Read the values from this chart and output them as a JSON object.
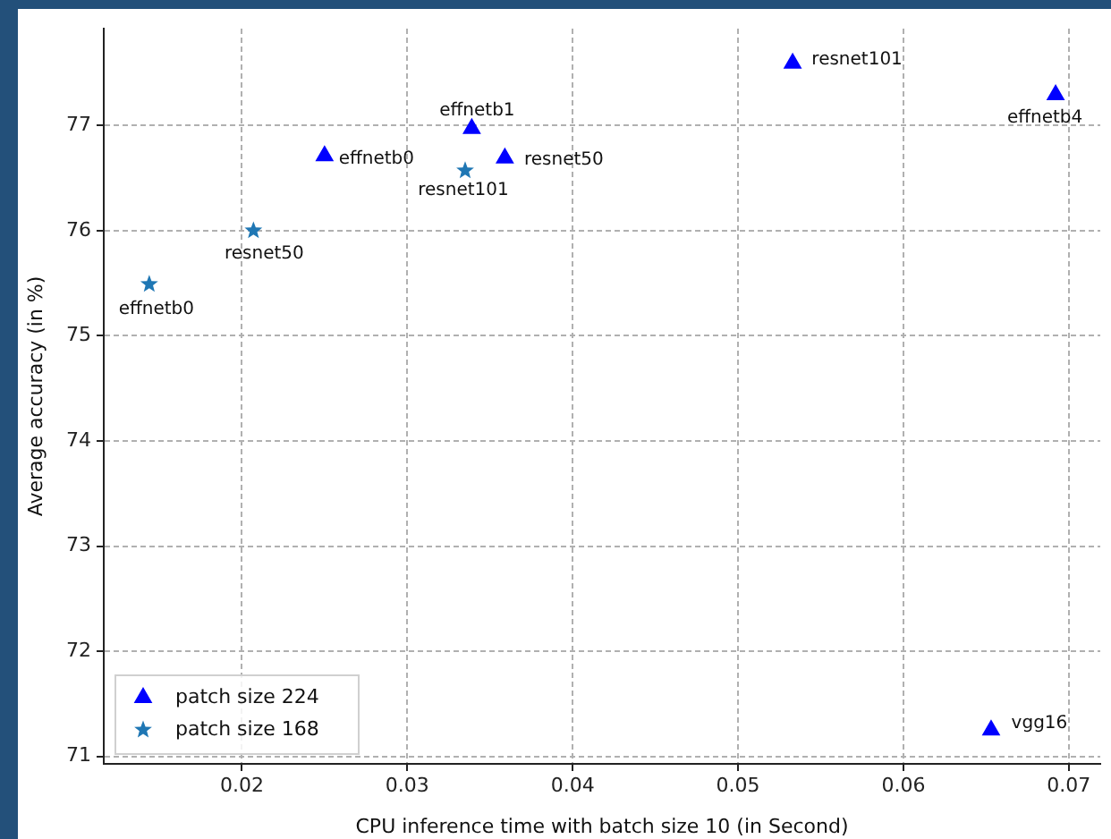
{
  "chart_data": {
    "type": "scatter",
    "xlabel": "CPU inference time with batch size 10 (in Second)",
    "ylabel": "Average accuracy (in %)",
    "xlim": [
      0.01165,
      0.0719
    ],
    "xticks": [
      0.02,
      0.03,
      0.04,
      0.05,
      0.06,
      0.07
    ],
    "ylim": [
      70.93,
      77.92
    ],
    "yticks": [
      71,
      72,
      73,
      74,
      75,
      76,
      77
    ],
    "grid": true,
    "legend": "bottom left",
    "series": [
      {
        "name": "patch size 224",
        "color": "#0000ff",
        "marker": "triangle",
        "x": [
          0.025,
          0.0339,
          0.0359,
          0.0533,
          0.0692,
          0.0653
        ],
        "values": [
          76.71,
          76.97,
          76.69,
          77.59,
          77.29,
          71.25
        ]
      },
      {
        "name": "patch size 168",
        "color": "#1f77b4",
        "marker": "star",
        "x": [
          0.0144,
          0.0207,
          0.0335
        ],
        "values": [
          75.49,
          76.0,
          76.57
        ]
      }
    ],
    "annotations": [
      {
        "text": "effnetb0",
        "x": 0.025,
        "y": 76.71
      },
      {
        "text": "effnetb1",
        "x": 0.0339,
        "y": 76.97
      },
      {
        "text": "resnet50",
        "x": 0.0359,
        "y": 76.69
      },
      {
        "text": "resnet101",
        "x": 0.0533,
        "y": 77.59
      },
      {
        "text": "effnetb4",
        "x": 0.0692,
        "y": 77.29
      },
      {
        "text": "vgg16",
        "x": 0.0653,
        "y": 71.25
      },
      {
        "text": "effnetb0",
        "x": 0.0144,
        "y": 75.49
      },
      {
        "text": "resnet50",
        "x": 0.0207,
        "y": 76.0
      },
      {
        "text": "resnet101",
        "x": 0.0335,
        "y": 76.57
      }
    ]
  }
}
